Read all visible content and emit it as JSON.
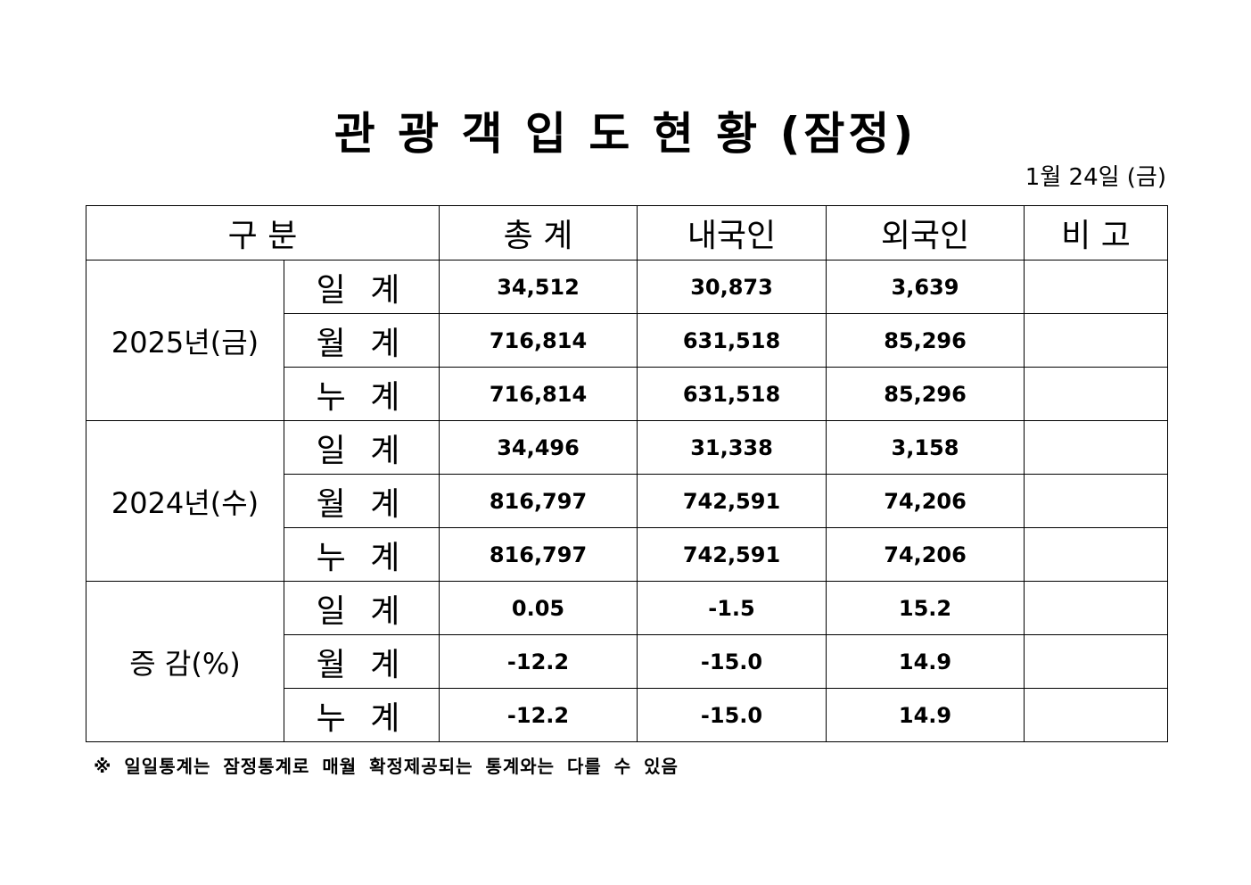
{
  "header": {
    "title": "관 광 객 입 도 현 황 (잠정)",
    "date": "1월 24일 (금)"
  },
  "table": {
    "columns": [
      "구 분",
      "총 계",
      "내국인",
      "외국인",
      "비 고"
    ],
    "groups": [
      {
        "label": "2025년(금)",
        "rows": [
          {
            "label": "일 계",
            "values": [
              "34,512",
              "30,873",
              "3,639"
            ]
          },
          {
            "label": "월 계",
            "values": [
              "716,814",
              "631,518",
              "85,296"
            ]
          },
          {
            "label": "누 계",
            "values": [
              "716,814",
              "631,518",
              "85,296"
            ]
          }
        ]
      },
      {
        "label": "2024년(수)",
        "rows": [
          {
            "label": "일 계",
            "values": [
              "34,496",
              "31,338",
              "3,158"
            ]
          },
          {
            "label": "월 계",
            "values": [
              "816,797",
              "742,591",
              "74,206"
            ]
          },
          {
            "label": "누 계",
            "values": [
              "816,797",
              "742,591",
              "74,206"
            ]
          }
        ]
      },
      {
        "label": "증 감(%)",
        "rows": [
          {
            "label": "일 계",
            "values": [
              "0.05",
              "-1.5",
              "15.2"
            ]
          },
          {
            "label": "월 계",
            "values": [
              "-12.2",
              "-15.0",
              "14.9"
            ]
          },
          {
            "label": "누 계",
            "values": [
              "-12.2",
              "-15.0",
              "14.9"
            ]
          }
        ]
      }
    ]
  },
  "footnote": "※ 일일통계는 잠정통계로 매월 확정제공되는 통계와는 다를 수 있음"
}
